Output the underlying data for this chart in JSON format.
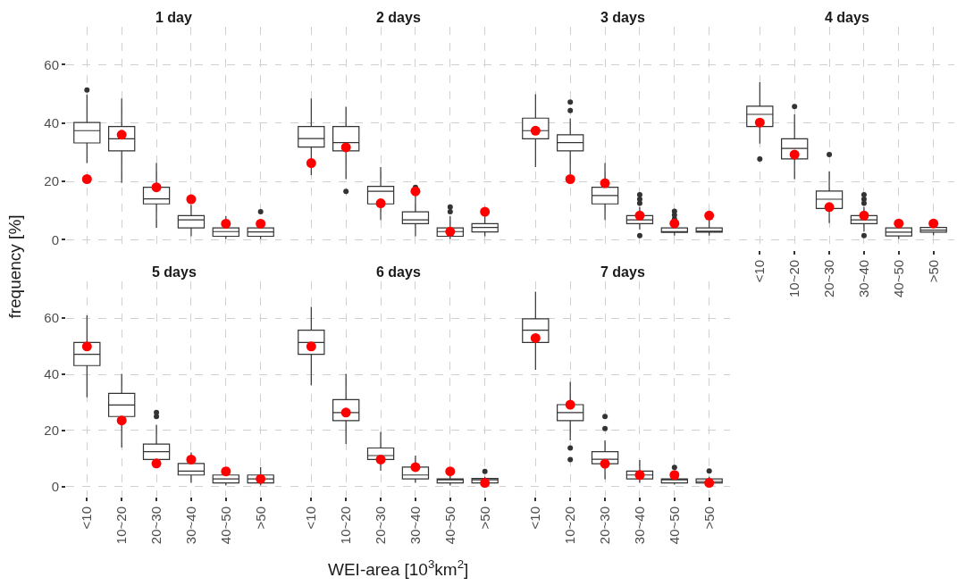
{
  "chart_data": [
    {
      "type": "box",
      "title": "1 day",
      "categories": [
        "<10",
        "10~20",
        "20~30",
        "30~40",
        "40~50",
        ">50"
      ],
      "ylim": [
        -3.5,
        73
      ],
      "yticks": [
        0,
        20,
        40,
        60
      ],
      "grid": true,
      "tick_labels": "y",
      "ylabel": "frequency [%]",
      "series": [
        {
          "type": "box",
          "color": "#333333",
          "boxes": [
            {
              "low": 26.3,
              "q1": 33.2,
              "median": 37.4,
              "q3": 40.2,
              "high": 49.7,
              "outliers": [
                51.3
              ]
            },
            {
              "low": 19.5,
              "q1": 30.5,
              "median": 34.6,
              "q3": 38.8,
              "high": 48.4
            },
            {
              "low": 4.1,
              "q1": 12.3,
              "median": 14.0,
              "q3": 18.0,
              "high": 26.3
            },
            {
              "low": 1.2,
              "q1": 4.1,
              "median": 6.8,
              "q3": 8.3,
              "high": 12
            },
            {
              "low": 0.3,
              "q1": 1.2,
              "median": 2.8,
              "q3": 4.1,
              "high": 8.2
            },
            {
              "low": 0.3,
              "q1": 1.2,
              "median": 2.7,
              "q3": 4.1,
              "high": 7,
              "outliers": [
                9.6
              ]
            }
          ]
        },
        {
          "type": "scatter",
          "color": "#ff0000",
          "marker": "circle",
          "x": [
            "<10",
            "10~20",
            "20~30",
            "30~40",
            "40~50",
            ">50"
          ],
          "values": [
            20.8,
            36.0,
            18.0,
            13.9,
            5.5,
            5.5
          ]
        }
      ]
    },
    {
      "type": "box",
      "title": "2 days",
      "categories": [
        "<10",
        "10~20",
        "20~30",
        "30~40",
        "40~50",
        ">50"
      ],
      "ylim": [
        -3.5,
        73
      ],
      "yticks": [
        0,
        20,
        40,
        60
      ],
      "grid": true,
      "tick_labels": false,
      "series": [
        {
          "type": "box",
          "color": "#333333",
          "boxes": [
            {
              "low": 22.2,
              "q1": 31.8,
              "median": 34.7,
              "q3": 38.8,
              "high": 48.4
            },
            {
              "low": 20.8,
              "q1": 30.5,
              "median": 33.3,
              "q3": 38.8,
              "high": 45.6,
              "outliers": [
                16.6
              ]
            },
            {
              "low": 6.8,
              "q1": 12.3,
              "median": 16.6,
              "q3": 18.3,
              "high": 24.9
            },
            {
              "low": 1.2,
              "q1": 5.5,
              "median": 6.8,
              "q3": 9.6,
              "high": 16,
              "outliers": [
                18
              ]
            },
            {
              "low": 0.3,
              "q1": 1.2,
              "median": 2.8,
              "q3": 4.1,
              "high": 8.2,
              "outliers": [
                9.6,
                11.2
              ]
            },
            {
              "low": 1.2,
              "q1": 2.7,
              "median": 4.2,
              "q3": 5.5,
              "high": 8.2
            }
          ]
        },
        {
          "type": "scatter",
          "color": "#ff0000",
          "marker": "circle",
          "x": [
            "<10",
            "10~20",
            "20~30",
            "30~40",
            "40~50",
            ">50"
          ],
          "values": [
            26.3,
            31.7,
            12.5,
            16.6,
            2.8,
            9.6
          ]
        }
      ]
    },
    {
      "type": "box",
      "title": "3 days",
      "categories": [
        "<10",
        "10~20",
        "20~30",
        "30~40",
        "40~50",
        ">50"
      ],
      "ylim": [
        -3.5,
        73
      ],
      "yticks": [
        0,
        20,
        40,
        60
      ],
      "grid": true,
      "tick_labels": false,
      "series": [
        {
          "type": "box",
          "color": "#333333",
          "boxes": [
            {
              "low": 24.9,
              "q1": 34.6,
              "median": 37.4,
              "q3": 41.7,
              "high": 49.9
            },
            {
              "low": 22.5,
              "q1": 30.5,
              "median": 33.3,
              "q3": 36.0,
              "high": 41.6,
              "outliers": [
                44.3,
                47.2
              ]
            },
            {
              "low": 6.8,
              "q1": 12.3,
              "median": 15.2,
              "q3": 18.0,
              "high": 26.3
            },
            {
              "low": 3.5,
              "q1": 5.5,
              "median": 6.8,
              "q3": 8.3,
              "high": 11.2,
              "outliers": [
                1.4,
                12.5,
                13.9,
                15.4
              ]
            },
            {
              "low": 1.4,
              "q1": 2.5,
              "median": 2.8,
              "q3": 4.1,
              "high": 5.5,
              "outliers": [
                7.1,
                8.5,
                9.8
              ]
            },
            {
              "low": 1.4,
              "q1": 2.6,
              "median": 2.8,
              "q3": 4.1,
              "high": 6.9
            }
          ]
        },
        {
          "type": "scatter",
          "color": "#ff0000",
          "marker": "circle",
          "x": [
            "<10",
            "10~20",
            "20~30",
            "30~40",
            "40~50",
            ">50"
          ],
          "values": [
            37.4,
            20.8,
            19.4,
            8.3,
            5.6,
            8.3
          ]
        }
      ]
    },
    {
      "type": "box",
      "title": "4 days",
      "categories": [
        "<10",
        "10~20",
        "20~30",
        "30~40",
        "40~50",
        ">50"
      ],
      "ylim": [
        -3.5,
        73
      ],
      "yticks": [
        0,
        20,
        40,
        60
      ],
      "grid": true,
      "tick_labels": "x",
      "series": [
        {
          "type": "box",
          "color": "#333333",
          "boxes": [
            {
              "low": 33,
              "q1": 38.8,
              "median": 43.0,
              "q3": 45.8,
              "high": 54.0,
              "outliers": [
                27.7
              ]
            },
            {
              "low": 20.8,
              "q1": 27.7,
              "median": 31.3,
              "q3": 34.6,
              "high": 43.0,
              "outliers": [
                45.7
              ]
            },
            {
              "low": 5.7,
              "q1": 10.7,
              "median": 13.9,
              "q3": 16.7,
              "high": 23.5,
              "outliers": [
                29.2
              ]
            },
            {
              "low": 2.8,
              "q1": 5.5,
              "median": 6.8,
              "q3": 8.3,
              "high": 11.2,
              "outliers": [
                1.4,
                12.5,
                13.9,
                15.4
              ]
            },
            {
              "low": 0.3,
              "q1": 1.3,
              "median": 2.6,
              "q3": 4.1,
              "high": 5.2
            },
            {
              "low": 1.5,
              "q1": 2.6,
              "median": 3.3,
              "q3": 4.2,
              "high": 5.5
            }
          ]
        },
        {
          "type": "scatter",
          "color": "#ff0000",
          "marker": "circle",
          "x": [
            "<10",
            "10~20",
            "20~30",
            "30~40",
            "40~50",
            ">50"
          ],
          "values": [
            40.2,
            29.2,
            11.2,
            8.3,
            5.6,
            5.6
          ]
        }
      ]
    },
    {
      "type": "box",
      "title": "5 days",
      "categories": [
        "<10",
        "10~20",
        "20~30",
        "30~40",
        "40~50",
        ">50"
      ],
      "ylim": [
        -3.5,
        73
      ],
      "yticks": [
        0,
        20,
        40,
        60
      ],
      "grid": true,
      "series": [
        {
          "type": "box",
          "color": "#333333",
          "boxes": [
            {
              "low": 31.8,
              "q1": 43.1,
              "median": 47.1,
              "q3": 51.3,
              "high": 61.0
            },
            {
              "low": 14.0,
              "q1": 25.0,
              "median": 29.1,
              "q3": 33.2,
              "high": 40.2
            },
            {
              "low": 7.1,
              "q1": 9.7,
              "median": 12.5,
              "q3": 15.2,
              "high": 22.1,
              "outliers": [
                25.0,
                26.4
              ]
            },
            {
              "low": 1.4,
              "q1": 4.2,
              "median": 5.6,
              "q3": 8.3,
              "high": 12.2
            },
            {
              "low": 0.5,
              "q1": 1.4,
              "median": 2.8,
              "q3": 4.2,
              "high": 6.6
            },
            {
              "low": 0.5,
              "q1": 1.4,
              "median": 2.8,
              "q3": 4.2,
              "high": 7.0
            }
          ]
        },
        {
          "type": "scatter",
          "color": "#ff0000",
          "marker": "circle",
          "x": [
            "<10",
            "10~20",
            "20~30",
            "30~40",
            "40~50",
            ">50"
          ],
          "values": [
            49.9,
            23.6,
            8.3,
            9.7,
            5.5,
            2.8
          ]
        }
      ]
    },
    {
      "type": "box",
      "title": "6 days",
      "categories": [
        "<10",
        "10~20",
        "20~30",
        "30~40",
        "40~50",
        ">50"
      ],
      "ylim": [
        -3.5,
        73
      ],
      "yticks": [
        0,
        20,
        40,
        60
      ],
      "grid": true,
      "tick_labels": "x",
      "xlabel": "WEI-area [10$^{3}$km$^{2}$]",
      "series": [
        {
          "type": "box",
          "color": "#333333",
          "boxes": [
            {
              "low": 36.1,
              "q1": 47.1,
              "median": 51.3,
              "q3": 55.7,
              "high": 64.0
            },
            {
              "low": 15.2,
              "q1": 23.5,
              "median": 26.4,
              "q3": 31.0,
              "high": 40.2
            },
            {
              "low": 5.7,
              "q1": 9.7,
              "median": 11.1,
              "q3": 13.8,
              "high": 19.5
            },
            {
              "low": 1.4,
              "q1": 2.8,
              "median": 4.2,
              "q3": 7.0,
              "high": 11.1
            },
            {
              "low": 0.5,
              "q1": 1.4,
              "median": 2.5,
              "q3": 2.8,
              "high": 4.2
            },
            {
              "low": 0.5,
              "q1": 1.4,
              "median": 2.5,
              "q3": 3.0,
              "high": 3.6,
              "outliers": [
                5.5
              ]
            }
          ]
        },
        {
          "type": "scatter",
          "color": "#ff0000",
          "marker": "circle",
          "x": [
            "<10",
            "10~20",
            "20~30",
            "30~40",
            "40~50",
            ">50"
          ],
          "values": [
            49.9,
            26.4,
            9.7,
            7.0,
            5.5,
            1.4
          ]
        }
      ]
    },
    {
      "type": "box",
      "title": "7 days",
      "categories": [
        "<10",
        "10~20",
        "20~30",
        "30~40",
        "40~50",
        ">50"
      ],
      "ylim": [
        -3.5,
        73
      ],
      "yticks": [
        0,
        20,
        40,
        60
      ],
      "grid": true,
      "tick_labels": "x",
      "series": [
        {
          "type": "box",
          "color": "#333333",
          "boxes": [
            {
              "low": 41.6,
              "q1": 51.3,
              "median": 55.7,
              "q3": 59.7,
              "high": 69.4
            },
            {
              "low": 16.5,
              "q1": 23.5,
              "median": 26.4,
              "q3": 29.2,
              "high": 37.3,
              "outliers": [
                9.7,
                13.8
              ]
            },
            {
              "low": 2.7,
              "q1": 8.2,
              "median": 9.8,
              "q3": 12.5,
              "high": 16.5,
              "outliers": [
                20.7,
                25.0
              ]
            },
            {
              "low": 1.4,
              "q1": 2.8,
              "median": 4.2,
              "q3": 5.6,
              "high": 9.5
            },
            {
              "low": 0.8,
              "q1": 1.4,
              "median": 2.8,
              "q3": 2.8,
              "high": 4.4,
              "outliers": [
                6.9
              ]
            },
            {
              "low": 0.8,
              "q1": 1.4,
              "median": 1.9,
              "q3": 2.8,
              "high": 3.6,
              "outliers": [
                5.6
              ]
            }
          ]
        },
        {
          "type": "scatter",
          "color": "#ff0000",
          "marker": "circle",
          "x": [
            "<10",
            "10~20",
            "20~30",
            "30~40",
            "40~50",
            ">50"
          ],
          "values": [
            52.9,
            29.2,
            8.2,
            4.2,
            4.2,
            1.4
          ]
        }
      ]
    }
  ]
}
